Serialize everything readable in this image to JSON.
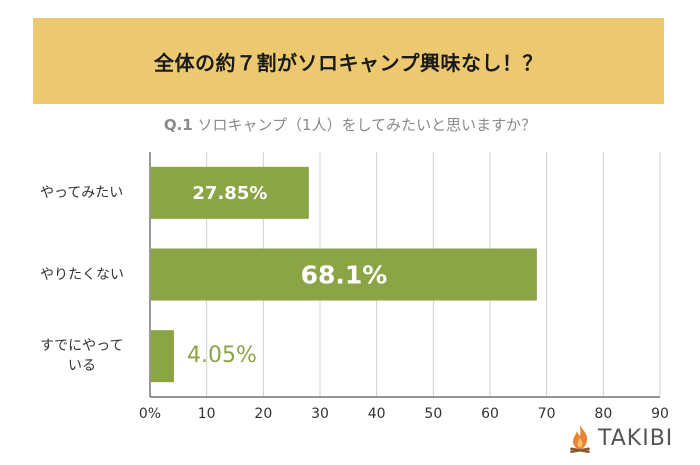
{
  "banner": {
    "title": "全体の約７割がソロキャンプ興味なし！？"
  },
  "question": {
    "number": "Q.1",
    "text": "ソロキャンプ（1人）をしてみたいと思いますか？"
  },
  "chart_data": {
    "type": "bar",
    "orientation": "horizontal",
    "categories": [
      "やってみたい",
      "やりたくない",
      "すでにやっている"
    ],
    "category_label_lines": [
      [
        "やってみたい"
      ],
      [
        "やりたくない"
      ],
      [
        "すでにやって",
        "いる"
      ]
    ],
    "values": [
      27.85,
      68.1,
      4.05
    ],
    "data_labels": [
      "27.85%",
      "68.1%",
      "4.05%"
    ],
    "x_ticks": [
      "0%",
      "10",
      "20",
      "30",
      "40",
      "50",
      "60",
      "70",
      "80",
      "90"
    ],
    "xlim": [
      0,
      90
    ],
    "grid": true,
    "legend": "none",
    "bar_color": "#8aa446",
    "label_inside_color": "#ffffff",
    "label_outside_color": "#8aa446"
  },
  "logo": {
    "text": "TAKIBI",
    "icon": "campfire-icon",
    "flame_color": "#e8853a"
  }
}
